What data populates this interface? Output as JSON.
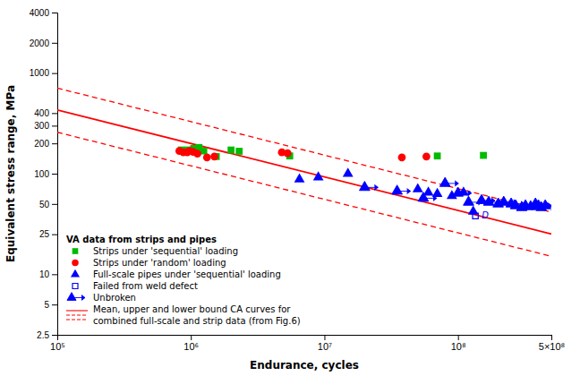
{
  "chart_data": {
    "type": "scatter",
    "log": true,
    "grid": false,
    "legend": "lower left",
    "xlabel": "Endurance, cycles",
    "ylabel": "Equivalent stress range, MPa",
    "xlim": [
      100000,
      500000000
    ],
    "ylim": [
      2.5,
      4000
    ],
    "xticks": [
      {
        "value": 100000,
        "label": "10⁵"
      },
      {
        "value": 1000000,
        "label": "10⁶"
      },
      {
        "value": 10000000,
        "label": "10⁷"
      },
      {
        "value": 100000000,
        "label": "10⁸"
      },
      {
        "value": 500000000,
        "label": "5×10⁸"
      }
    ],
    "yticks": [
      2.5,
      5,
      10,
      25,
      50,
      100,
      200,
      300,
      400,
      1000,
      2000,
      4000
    ],
    "legend_title": "VA data from strips and pipes",
    "legend_note": [
      "Mean, upper and lower bound CA curves for",
      "combined full-scale and strip data (from Fig.6)"
    ],
    "annotations": [
      {
        "text": "D",
        "x": 135000000,
        "y": 38
      }
    ],
    "series": [
      {
        "name": "Strips under 'sequential' loading",
        "type": "scatter",
        "marker": "square",
        "color": "#00bb00",
        "x": [
          850000,
          950000,
          1050000,
          1150000,
          1250000,
          1550000,
          2000000,
          2300000,
          5500000,
          70000000,
          155000000
        ],
        "values": [
          172,
          172,
          178,
          182,
          168,
          148,
          172,
          167,
          150,
          150,
          152
        ]
      },
      {
        "name": "Strips under 'random' loading",
        "type": "scatter",
        "marker": "circle",
        "color": "#ff0000",
        "x": [
          820000,
          880000,
          940000,
          980000,
          1040000,
          1120000,
          1320000,
          1500000,
          4800000,
          5300000,
          38000000,
          58000000
        ],
        "values": [
          168,
          163,
          163,
          168,
          165,
          158,
          145,
          148,
          163,
          160,
          145,
          148
        ]
      },
      {
        "name": "Full-scale pipes under 'sequential' loading",
        "type": "scatter",
        "marker": "triangle",
        "color": "#0000ff",
        "x": [
          6500000,
          9000000,
          15000000,
          50000000,
          60000000,
          70000000,
          90000000,
          110000000,
          130000000
        ],
        "values": [
          88,
          92,
          100,
          70,
          65,
          63,
          60,
          65,
          42
        ]
      },
      {
        "name": "Failed from weld defect",
        "type": "scatter",
        "marker": "open-square",
        "color": "#0000ff",
        "x": [
          135000000
        ],
        "values": [
          38
        ]
      },
      {
        "name": "Unbroken",
        "type": "scatter",
        "marker": "triangle-arrow",
        "color": "#0000ff",
        "x": [
          20000000,
          35000000,
          55000000,
          80000000,
          100000000,
          120000000,
          150000000,
          170000000,
          200000000,
          220000000,
          250000000,
          270000000,
          300000000,
          320000000,
          350000000,
          380000000,
          400000000,
          420000000,
          450000000
        ],
        "values": [
          73,
          67,
          57,
          80,
          64,
          52,
          54,
          52,
          50,
          52,
          50,
          48,
          46,
          48,
          47,
          50,
          48,
          46,
          48
        ]
      },
      {
        "type": "line",
        "line_style": "solid",
        "color": "#ff0000",
        "x": [
          100000,
          500000000
        ],
        "values": [
          430.03,
          25.16
        ]
      },
      {
        "type": "line",
        "line_style": "dashed",
        "color": "#ff0000",
        "x": [
          100000,
          500000000
        ],
        "values": [
          709.55,
          41.51
        ]
      },
      {
        "type": "line",
        "line_style": "dashed",
        "color": "#ff0000",
        "x": [
          100000,
          500000000
        ],
        "values": [
          258.02,
          15.09
        ]
      }
    ]
  }
}
